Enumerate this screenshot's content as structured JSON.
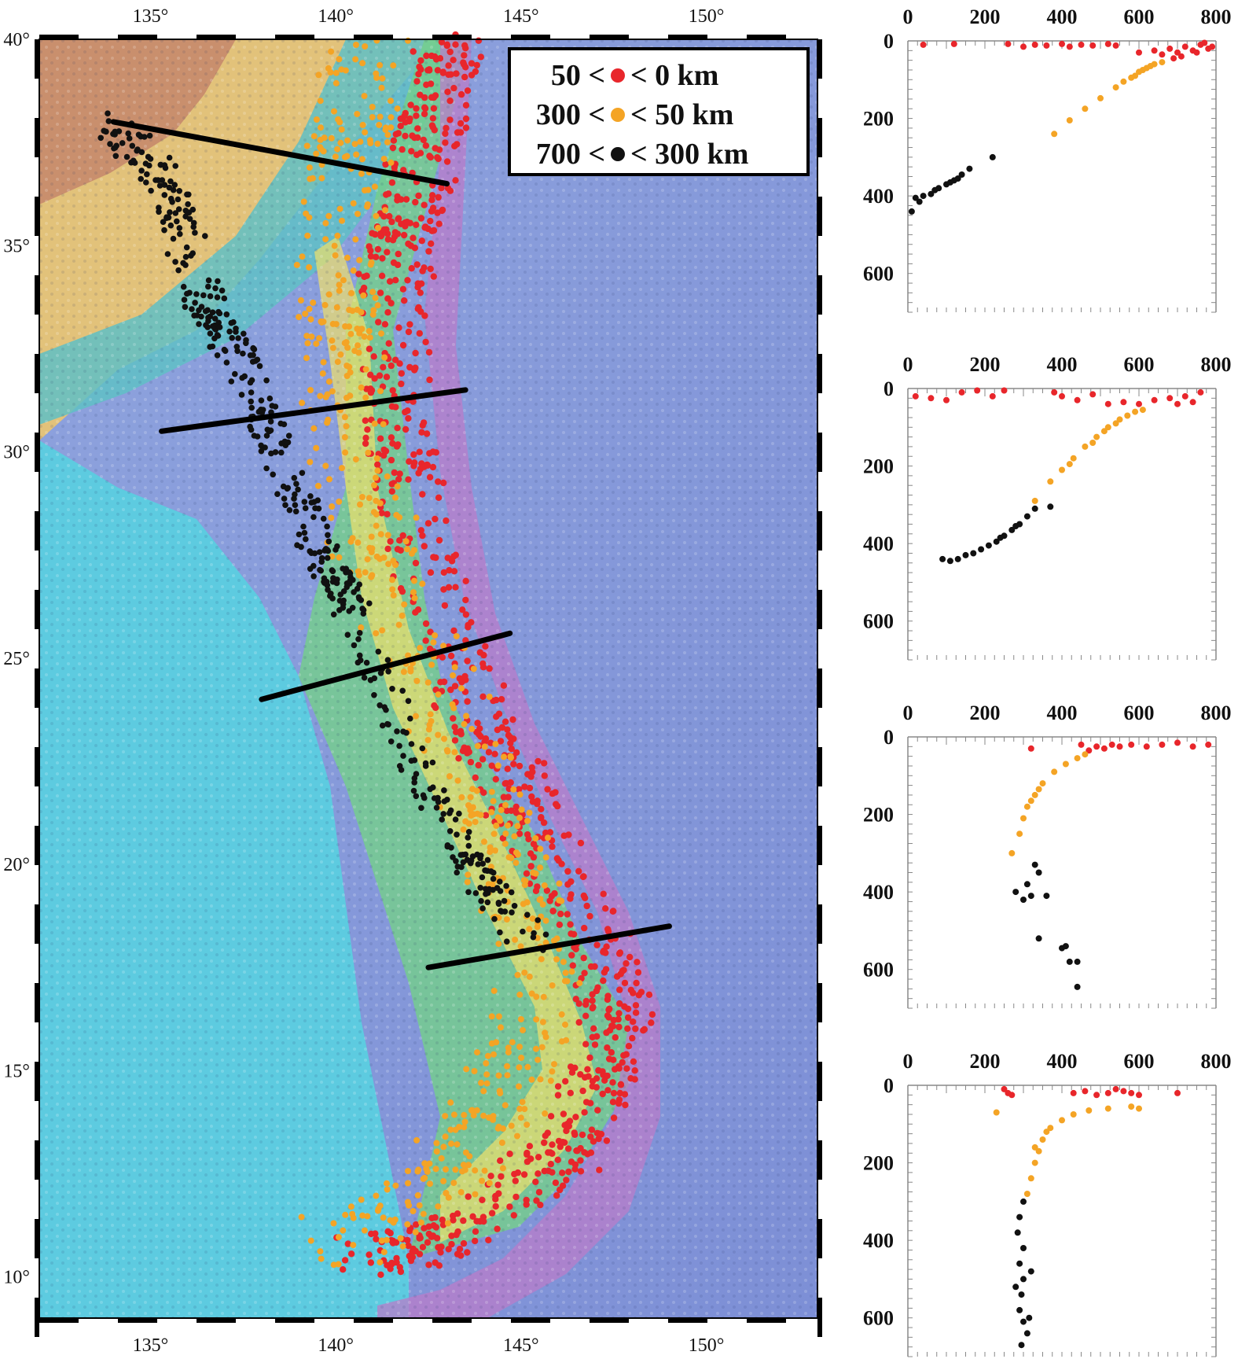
{
  "map": {
    "lon_ticks": [
      "135°",
      "140°",
      "145°",
      "150°"
    ],
    "lat_ticks": [
      "40°",
      "35°",
      "30°",
      "25°",
      "20°",
      "15°",
      "10°"
    ],
    "lon_range": [
      132,
      153
    ],
    "lat_range": [
      9,
      40
    ],
    "sections": [
      {
        "from": [
          134,
          38
        ],
        "to": [
          143,
          36.5
        ]
      },
      {
        "from": [
          135.3,
          30.5
        ],
        "to": [
          143.5,
          31.5
        ]
      },
      {
        "from": [
          138,
          24
        ],
        "to": [
          144.7,
          25.6
        ]
      },
      {
        "from": [
          142.5,
          17.5
        ],
        "to": [
          149,
          18.5
        ]
      }
    ]
  },
  "legend": {
    "rows": [
      {
        "left": "50 <",
        "right": "< 0 km",
        "color": "#e8262b"
      },
      {
        "left": "300 <",
        "right": "< 50 km",
        "color": "#f4a425"
      },
      {
        "left": "700 <",
        "right": "< 300 km",
        "color": "#111111"
      }
    ]
  },
  "chart_data": [
    {
      "type": "scatter",
      "x_ticks": [
        "0",
        "200",
        "400",
        "600",
        "800"
      ],
      "y_ticks": [
        "0",
        "200",
        "400",
        "600"
      ],
      "xlim": [
        0,
        800
      ],
      "ylim": [
        0,
        700
      ],
      "series": [
        {
          "color": "#e8262b",
          "points": [
            [
              40,
              10
            ],
            [
              120,
              8
            ],
            [
              260,
              8
            ],
            [
              300,
              15
            ],
            [
              330,
              10
            ],
            [
              360,
              12
            ],
            [
              400,
              8
            ],
            [
              420,
              15
            ],
            [
              450,
              10
            ],
            [
              480,
              12
            ],
            [
              520,
              8
            ],
            [
              540,
              12
            ],
            [
              600,
              30
            ],
            [
              640,
              25
            ],
            [
              660,
              35
            ],
            [
              680,
              20
            ],
            [
              700,
              30
            ],
            [
              720,
              15
            ],
            [
              740,
              25
            ],
            [
              760,
              10
            ],
            [
              780,
              20
            ],
            [
              790,
              15
            ],
            [
              710,
              40
            ],
            [
              690,
              45
            ],
            [
              750,
              30
            ],
            [
              770,
              5
            ]
          ]
        },
        {
          "color": "#f4a425",
          "points": [
            [
              380,
              240
            ],
            [
              420,
              205
            ],
            [
              460,
              175
            ],
            [
              500,
              148
            ],
            [
              540,
              120
            ],
            [
              560,
              105
            ],
            [
              580,
              95
            ],
            [
              600,
              80
            ],
            [
              620,
              70
            ],
            [
              640,
              60
            ],
            [
              660,
              55
            ],
            [
              590,
              90
            ],
            [
              610,
              75
            ],
            [
              630,
              65
            ]
          ]
        },
        {
          "color": "#111111",
          "points": [
            [
              20,
              405
            ],
            [
              40,
              400
            ],
            [
              60,
              395
            ],
            [
              80,
              380
            ],
            [
              100,
              370
            ],
            [
              120,
              360
            ],
            [
              140,
              345
            ],
            [
              160,
              330
            ],
            [
              220,
              300
            ],
            [
              30,
              415
            ],
            [
              70,
              385
            ],
            [
              110,
              365
            ],
            [
              130,
              355
            ],
            [
              10,
              440
            ]
          ]
        }
      ]
    },
    {
      "type": "scatter",
      "x_ticks": [
        "0",
        "200",
        "400",
        "600",
        "800"
      ],
      "y_ticks": [
        "0",
        "200",
        "400",
        "600"
      ],
      "xlim": [
        0,
        800
      ],
      "ylim": [
        0,
        700
      ],
      "series": [
        {
          "color": "#e8262b",
          "points": [
            [
              20,
              20
            ],
            [
              60,
              25
            ],
            [
              100,
              30
            ],
            [
              140,
              10
            ],
            [
              180,
              5
            ],
            [
              220,
              20
            ],
            [
              250,
              5
            ],
            [
              380,
              10
            ],
            [
              400,
              20
            ],
            [
              440,
              30
            ],
            [
              480,
              15
            ],
            [
              520,
              40
            ],
            [
              560,
              35
            ],
            [
              600,
              40
            ],
            [
              640,
              30
            ],
            [
              680,
              25
            ],
            [
              700,
              40
            ],
            [
              720,
              20
            ],
            [
              740,
              35
            ],
            [
              760,
              10
            ]
          ]
        },
        {
          "color": "#f4a425",
          "points": [
            [
              330,
              290
            ],
            [
              370,
              240
            ],
            [
              400,
              210
            ],
            [
              430,
              180
            ],
            [
              460,
              150
            ],
            [
              490,
              125
            ],
            [
              510,
              110
            ],
            [
              540,
              90
            ],
            [
              570,
              70
            ],
            [
              590,
              60
            ],
            [
              610,
              55
            ],
            [
              420,
              195
            ],
            [
              480,
              140
            ],
            [
              520,
              100
            ],
            [
              550,
              80
            ]
          ]
        },
        {
          "color": "#111111",
          "points": [
            [
              330,
              310
            ],
            [
              310,
              330
            ],
            [
              290,
              350
            ],
            [
              270,
              365
            ],
            [
              250,
              380
            ],
            [
              230,
              395
            ],
            [
              210,
              405
            ],
            [
              190,
              415
            ],
            [
              170,
              425
            ],
            [
              150,
              430
            ],
            [
              130,
              440
            ],
            [
              110,
              445
            ],
            [
              90,
              440
            ],
            [
              370,
              305
            ],
            [
              280,
              355
            ],
            [
              240,
              385
            ]
          ]
        }
      ]
    },
    {
      "type": "scatter",
      "x_ticks": [
        "0",
        "200",
        "400",
        "600",
        "800"
      ],
      "y_ticks": [
        "0",
        "200",
        "400",
        "600"
      ],
      "xlim": [
        0,
        800
      ],
      "ylim": [
        0,
        700
      ],
      "series": [
        {
          "color": "#e8262b",
          "points": [
            [
              320,
              30
            ],
            [
              450,
              20
            ],
            [
              470,
              35
            ],
            [
              490,
              25
            ],
            [
              510,
              30
            ],
            [
              530,
              20
            ],
            [
              550,
              25
            ],
            [
              580,
              20
            ],
            [
              620,
              25
            ],
            [
              660,
              20
            ],
            [
              700,
              15
            ],
            [
              740,
              25
            ],
            [
              780,
              20
            ]
          ]
        },
        {
          "color": "#f4a425",
          "points": [
            [
              270,
              300
            ],
            [
              290,
              250
            ],
            [
              300,
              210
            ],
            [
              310,
              180
            ],
            [
              330,
              150
            ],
            [
              350,
              120
            ],
            [
              380,
              90
            ],
            [
              410,
              70
            ],
            [
              440,
              55
            ],
            [
              460,
              45
            ],
            [
              320,
              165
            ],
            [
              340,
              135
            ]
          ]
        },
        {
          "color": "#111111",
          "points": [
            [
              330,
              330
            ],
            [
              340,
              350
            ],
            [
              310,
              380
            ],
            [
              280,
              400
            ],
            [
              320,
              410
            ],
            [
              360,
              410
            ],
            [
              340,
              520
            ],
            [
              400,
              545
            ],
            [
              410,
              540
            ],
            [
              420,
              580
            ],
            [
              440,
              580
            ],
            [
              440,
              645
            ],
            [
              300,
              420
            ]
          ]
        }
      ]
    },
    {
      "type": "scatter",
      "x_ticks": [
        "0",
        "200",
        "400",
        "600",
        "800"
      ],
      "y_ticks": [
        "0",
        "200",
        "400",
        "600"
      ],
      "xlim": [
        0,
        800
      ],
      "ylim": [
        0,
        700
      ],
      "series": [
        {
          "color": "#e8262b",
          "points": [
            [
              250,
              10
            ],
            [
              260,
              20
            ],
            [
              270,
              25
            ],
            [
              430,
              20
            ],
            [
              460,
              15
            ],
            [
              490,
              25
            ],
            [
              520,
              20
            ],
            [
              540,
              10
            ],
            [
              560,
              15
            ],
            [
              580,
              20
            ],
            [
              600,
              25
            ],
            [
              700,
              20
            ]
          ]
        },
        {
          "color": "#f4a425",
          "points": [
            [
              230,
              70
            ],
            [
              310,
              280
            ],
            [
              320,
              240
            ],
            [
              330,
              200
            ],
            [
              340,
              170
            ],
            [
              350,
              140
            ],
            [
              370,
              110
            ],
            [
              400,
              90
            ],
            [
              430,
              75
            ],
            [
              470,
              65
            ],
            [
              520,
              60
            ],
            [
              580,
              55
            ],
            [
              600,
              60
            ],
            [
              330,
              160
            ],
            [
              360,
              120
            ]
          ]
        },
        {
          "color": "#111111",
          "points": [
            [
              300,
              300
            ],
            [
              290,
              340
            ],
            [
              285,
              380
            ],
            [
              300,
              420
            ],
            [
              290,
              460
            ],
            [
              300,
              500
            ],
            [
              295,
              540
            ],
            [
              290,
              580
            ],
            [
              300,
              610
            ],
            [
              310,
              640
            ],
            [
              295,
              670
            ],
            [
              280,
              520
            ],
            [
              320,
              480
            ],
            [
              315,
              600
            ]
          ]
        }
      ]
    }
  ]
}
